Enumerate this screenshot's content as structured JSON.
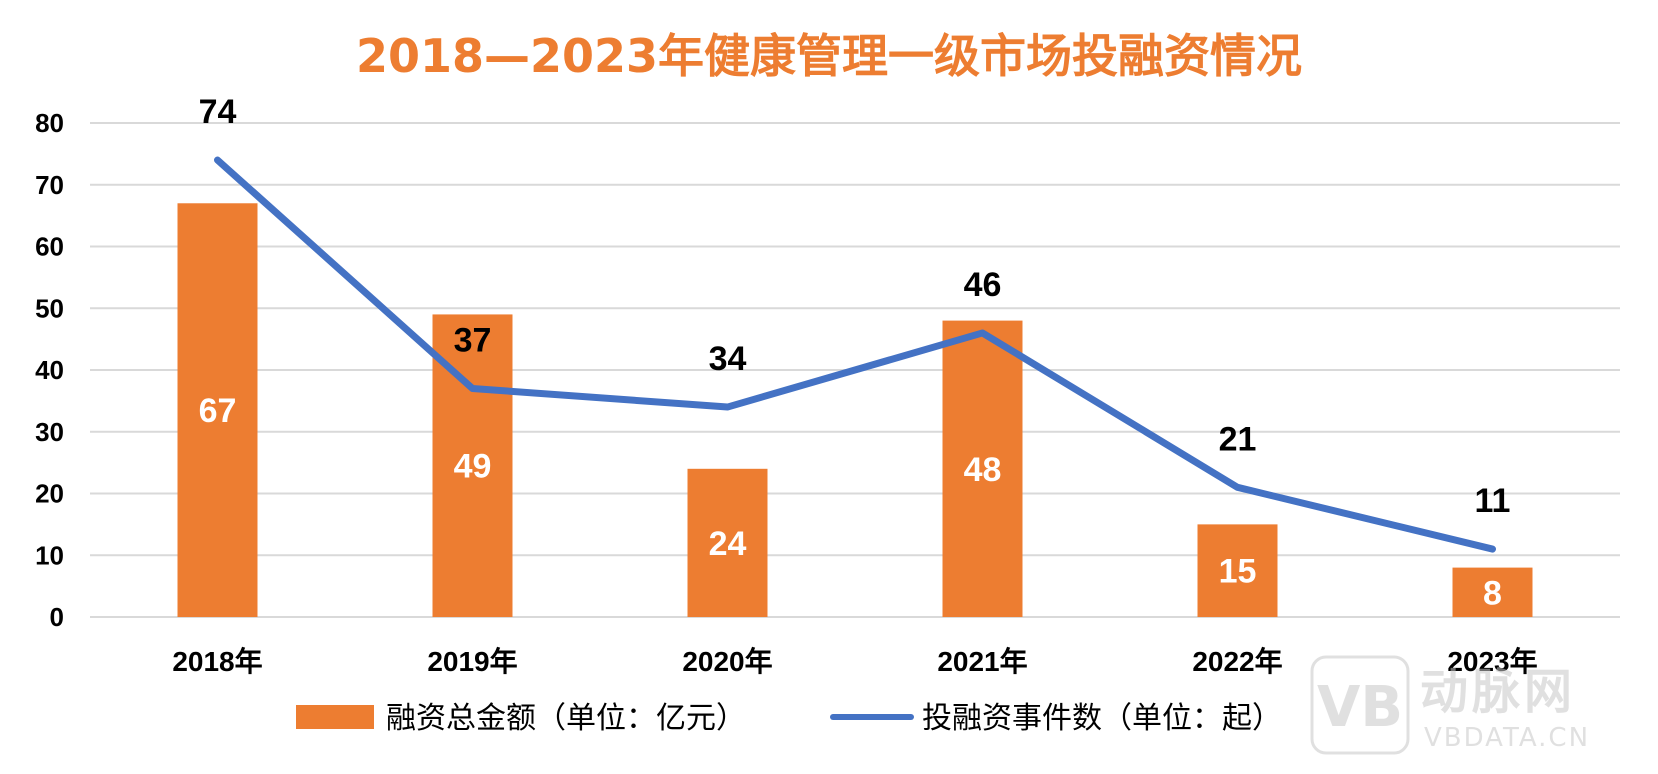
{
  "colors": {
    "bar": "#ed7d31",
    "line": "#4472c4",
    "title": "#ed7d31",
    "grid": "#d9d9d9",
    "text": "#000000",
    "bar_label": "#ffffff",
    "watermark": "#c8c8c8"
  },
  "watermark": {
    "logo_letters": "VB",
    "brand_cn": "动脉网",
    "site": "VBDATA.CN"
  },
  "chart_data": {
    "type": "bar",
    "title": "2018—2023年健康管理一级市场投融资情况",
    "categories": [
      "2018年",
      "2019年",
      "2020年",
      "2021年",
      "2022年",
      "2023年"
    ],
    "series": [
      {
        "name": "融资总金额（单位：亿元）",
        "type": "bar",
        "values": [
          67,
          49,
          24,
          48,
          15,
          8
        ]
      },
      {
        "name": "投融资事件数（单位：起）",
        "type": "line",
        "values": [
          74,
          37,
          34,
          46,
          21,
          11
        ]
      }
    ],
    "yticks": [
      0,
      10,
      20,
      30,
      40,
      50,
      60,
      70,
      80
    ],
    "ylim": [
      0,
      80
    ],
    "grid": true,
    "legend_position": "bottom"
  }
}
